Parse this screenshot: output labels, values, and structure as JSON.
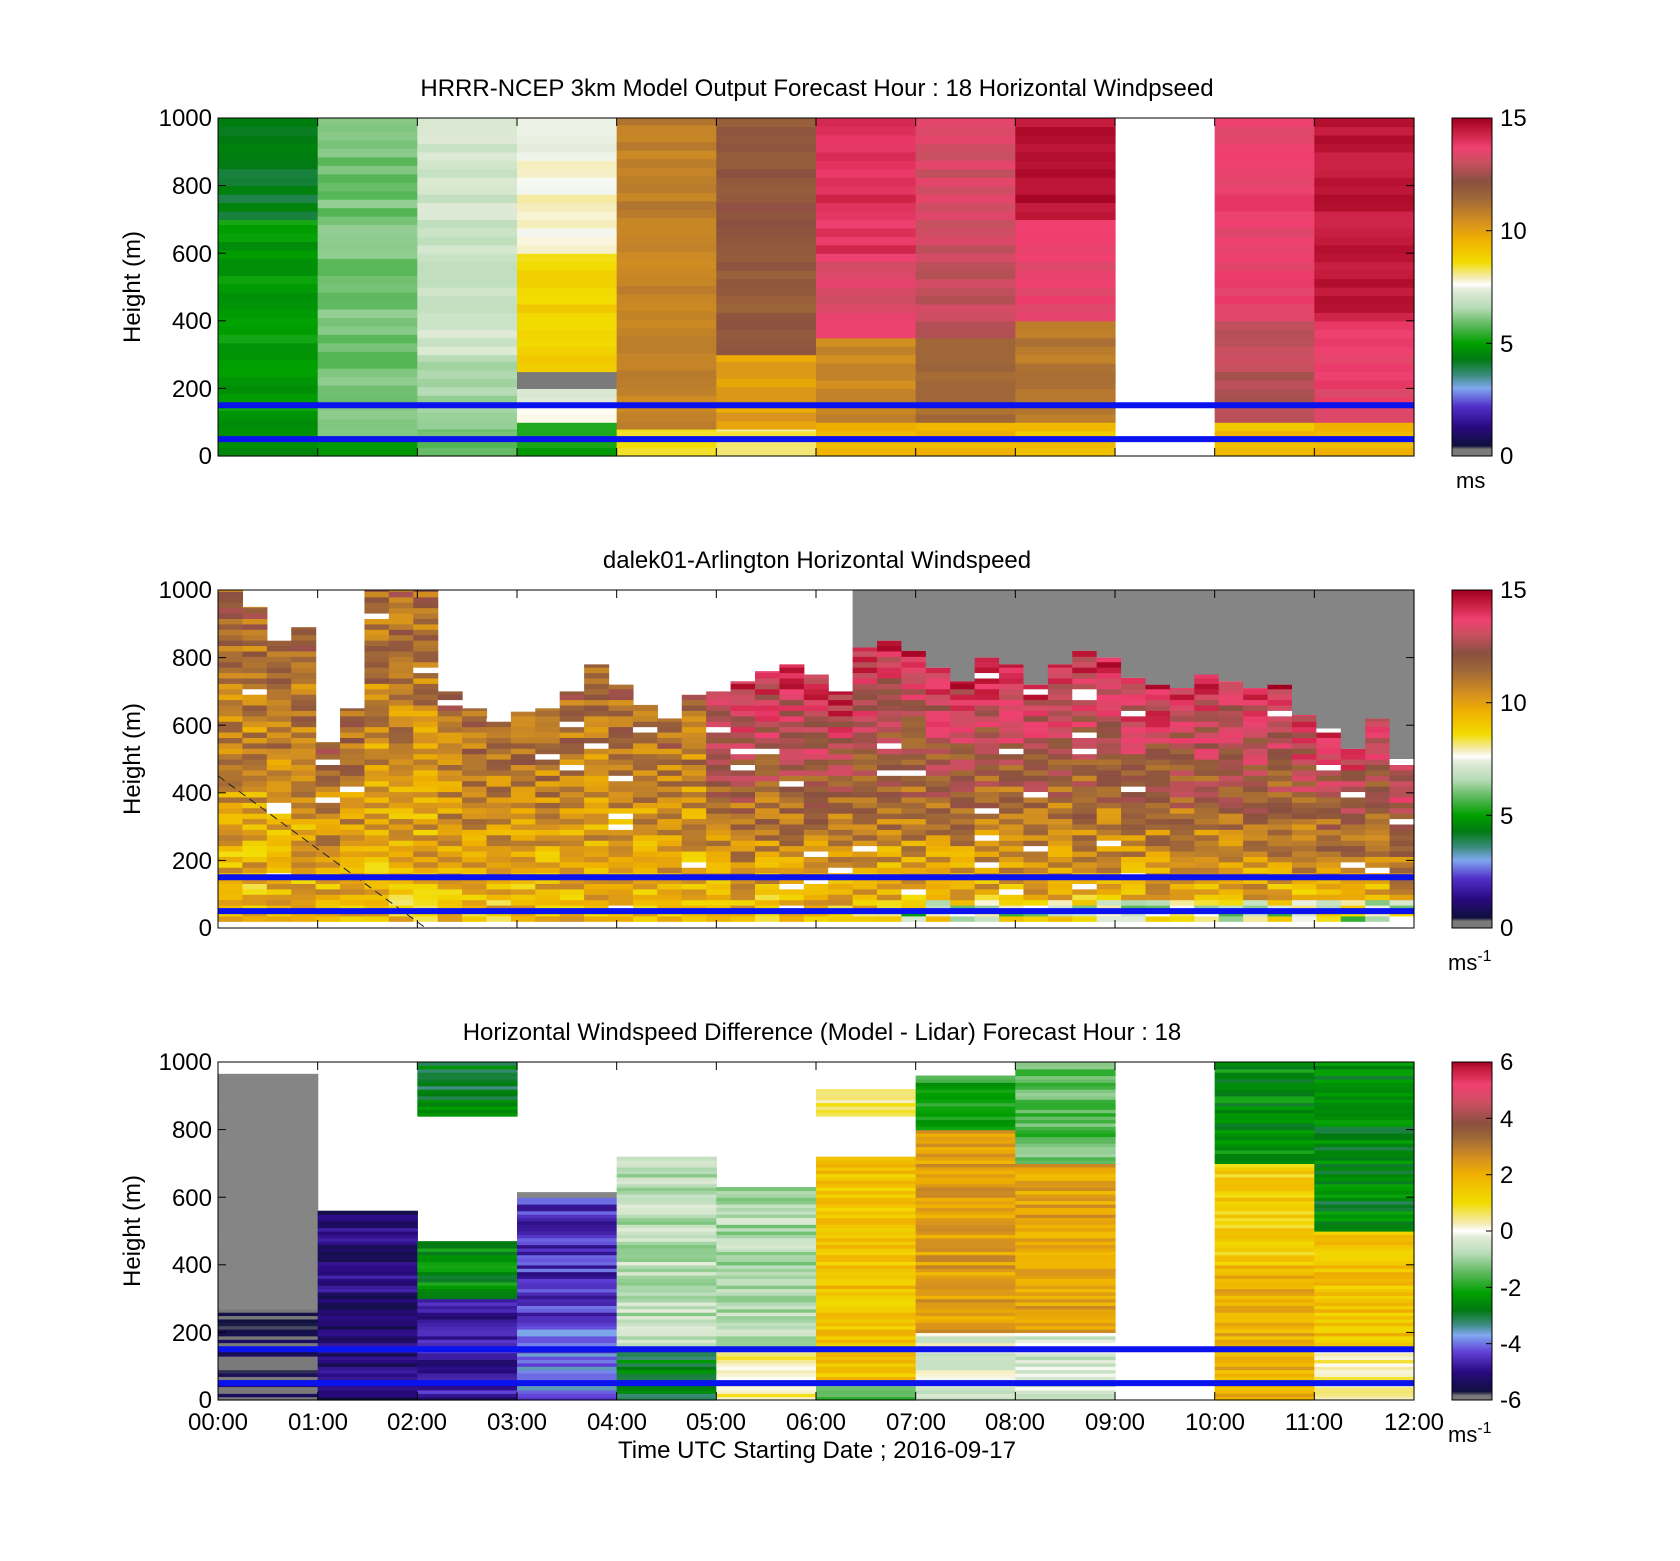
{
  "chart_data": [
    {
      "type": "heatmap",
      "title": "HRRR-NCEP 3km Model Output   Forecast Hour : 18 Horizontal Windpseed",
      "ylabel": "Height (m)",
      "ylim": [
        0,
        1000
      ],
      "yticks": [
        "0",
        "200",
        "400",
        "600",
        "800",
        "1000"
      ],
      "xlim_hours": [
        0,
        12
      ],
      "colorbar": {
        "range": [
          0,
          15
        ],
        "ticks": [
          "0",
          "5",
          "10",
          "15"
        ],
        "unit": "ms",
        "unit_sup": ""
      },
      "reference_lines_m": [
        50,
        150
      ],
      "reference_line_color": "#0a12ee",
      "missing_hours": [
        9
      ],
      "columns_speed_profile": [
        [
          [
            0,
            60,
            4.7
          ],
          [
            60,
            700,
            4.9
          ],
          [
            700,
            1000,
            4.2
          ]
        ],
        [
          [
            0,
            60,
            5
          ],
          [
            60,
            1000,
            6
          ]
        ],
        [
          [
            0,
            80,
            6
          ],
          [
            80,
            300,
            6.4
          ],
          [
            300,
            1000,
            7
          ]
        ],
        [
          [
            0,
            100,
            5
          ],
          [
            100,
            200,
            7.4
          ],
          [
            200,
            250,
            0.2
          ],
          [
            250,
            600,
            8.8
          ],
          [
            600,
            1000,
            7.7
          ]
        ],
        [
          [
            0,
            80,
            8.5
          ],
          [
            80,
            1000,
            10.8
          ]
        ],
        [
          [
            0,
            80,
            8.2
          ],
          [
            80,
            300,
            10
          ],
          [
            300,
            600,
            11.8
          ],
          [
            600,
            1000,
            12
          ]
        ],
        [
          [
            0,
            100,
            9.5
          ],
          [
            100,
            350,
            10.6
          ],
          [
            350,
            600,
            13.4
          ],
          [
            600,
            1000,
            14
          ]
        ],
        [
          [
            0,
            100,
            9.6
          ],
          [
            100,
            350,
            11.4
          ],
          [
            350,
            700,
            13
          ],
          [
            700,
            1000,
            13.2
          ]
        ],
        [
          [
            0,
            100,
            9.2
          ],
          [
            100,
            400,
            11
          ],
          [
            400,
            700,
            13.5
          ],
          [
            700,
            1000,
            14.6
          ]
        ],
        null,
        [
          [
            0,
            100,
            9.3
          ],
          [
            100,
            400,
            12.8
          ],
          [
            400,
            1000,
            13.6
          ]
        ],
        [
          [
            0,
            100,
            9.5
          ],
          [
            100,
            400,
            13.6
          ],
          [
            400,
            1000,
            14.5
          ]
        ]
      ]
    },
    {
      "type": "heatmap",
      "title": "dalek01-Arlington  Horizontal Windspeed",
      "ylabel": "Height (m)",
      "ylim": [
        0,
        1000
      ],
      "yticks": [
        "0",
        "200",
        "400",
        "600",
        "800",
        "1000"
      ],
      "xlim_hours": [
        0,
        12
      ],
      "colorbar": {
        "range": [
          0,
          15
        ],
        "ticks": [
          "0",
          "5",
          "10",
          "15"
        ],
        "unit": "ms",
        "unit_sup": "-1"
      },
      "reference_lines_m": [
        50,
        150
      ],
      "reference_line_color": "#0a12ee",
      "range_gate_tops_m": [
        1000,
        950,
        850,
        890,
        550,
        650,
        1000,
        1000,
        1000,
        700,
        650,
        620,
        640,
        650,
        700,
        780,
        720,
        660,
        620,
        690,
        700,
        730,
        760,
        780,
        750,
        700,
        830,
        850,
        820,
        770,
        730,
        800,
        780,
        720,
        780,
        820,
        800,
        740,
        720,
        710,
        750,
        730,
        710,
        720,
        630,
        590,
        530,
        620,
        500
      ],
      "low_signal_region": "gray above the gate tops after 06:00",
      "dashed_line": {
        "from": [
          "00:00",
          450
        ],
        "to": [
          "02:05",
          0
        ]
      }
    },
    {
      "type": "heatmap",
      "title": "Horizontal Windspeed Difference (Model - Lidar) Forecast Hour : 18",
      "ylabel": "Height (m)",
      "xlabel": "Time UTC  Starting Date ; 2016-09-17",
      "ylim": [
        0,
        1000
      ],
      "yticks": [
        "0",
        "200",
        "400",
        "600",
        "800",
        "1000"
      ],
      "xticks": [
        "00:00",
        "01:00",
        "02:00",
        "03:00",
        "04:00",
        "05:00",
        "06:00",
        "07:00",
        "08:00",
        "09:00",
        "10:00",
        "11:00",
        "12:00"
      ],
      "xlim_hours": [
        0,
        12
      ],
      "colorbar": {
        "range": [
          -6,
          6
        ],
        "ticks": [
          "-6",
          "-4",
          "-2",
          "0",
          "2",
          "4",
          "6"
        ],
        "unit": "ms",
        "unit_sup": "-1"
      },
      "reference_lines_m": [
        50,
        150
      ],
      "reference_line_color": "#0a12ee",
      "columns_difference_profile": [
        [
          [
            0,
            270,
            -5.8
          ],
          [
            270,
            965,
            null
          ]
        ],
        [
          [
            0,
            560,
            -5.2
          ]
        ],
        [
          [
            0,
            300,
            -4.8
          ],
          [
            300,
            470,
            -2.5
          ],
          [
            840,
            1000,
            -2.8
          ]
        ],
        [
          [
            0,
            220,
            -4
          ],
          [
            220,
            600,
            -4.5
          ],
          [
            600,
            615,
            null
          ]
        ],
        [
          [
            0,
            150,
            -2.8
          ],
          [
            150,
            720,
            -0.7
          ]
        ],
        [
          [
            0,
            150,
            0.5
          ],
          [
            150,
            630,
            -0.8
          ]
        ],
        [
          [
            0,
            60,
            -1.6
          ],
          [
            60,
            720,
            1.6
          ],
          [
            840,
            920,
            0.5
          ]
        ],
        [
          [
            0,
            200,
            -0.3
          ],
          [
            200,
            800,
            2.3
          ],
          [
            800,
            960,
            -2
          ]
        ],
        [
          [
            0,
            200,
            -0.4
          ],
          [
            200,
            700,
            2.2
          ],
          [
            700,
            1000,
            -1.5
          ]
        ],
        null,
        [
          [
            0,
            400,
            2
          ],
          [
            400,
            700,
            1.3
          ],
          [
            700,
            1000,
            -2.5
          ]
        ],
        [
          [
            0,
            150,
            0.3
          ],
          [
            150,
            500,
            1.6
          ],
          [
            500,
            1000,
            -2.6
          ]
        ]
      ]
    }
  ]
}
